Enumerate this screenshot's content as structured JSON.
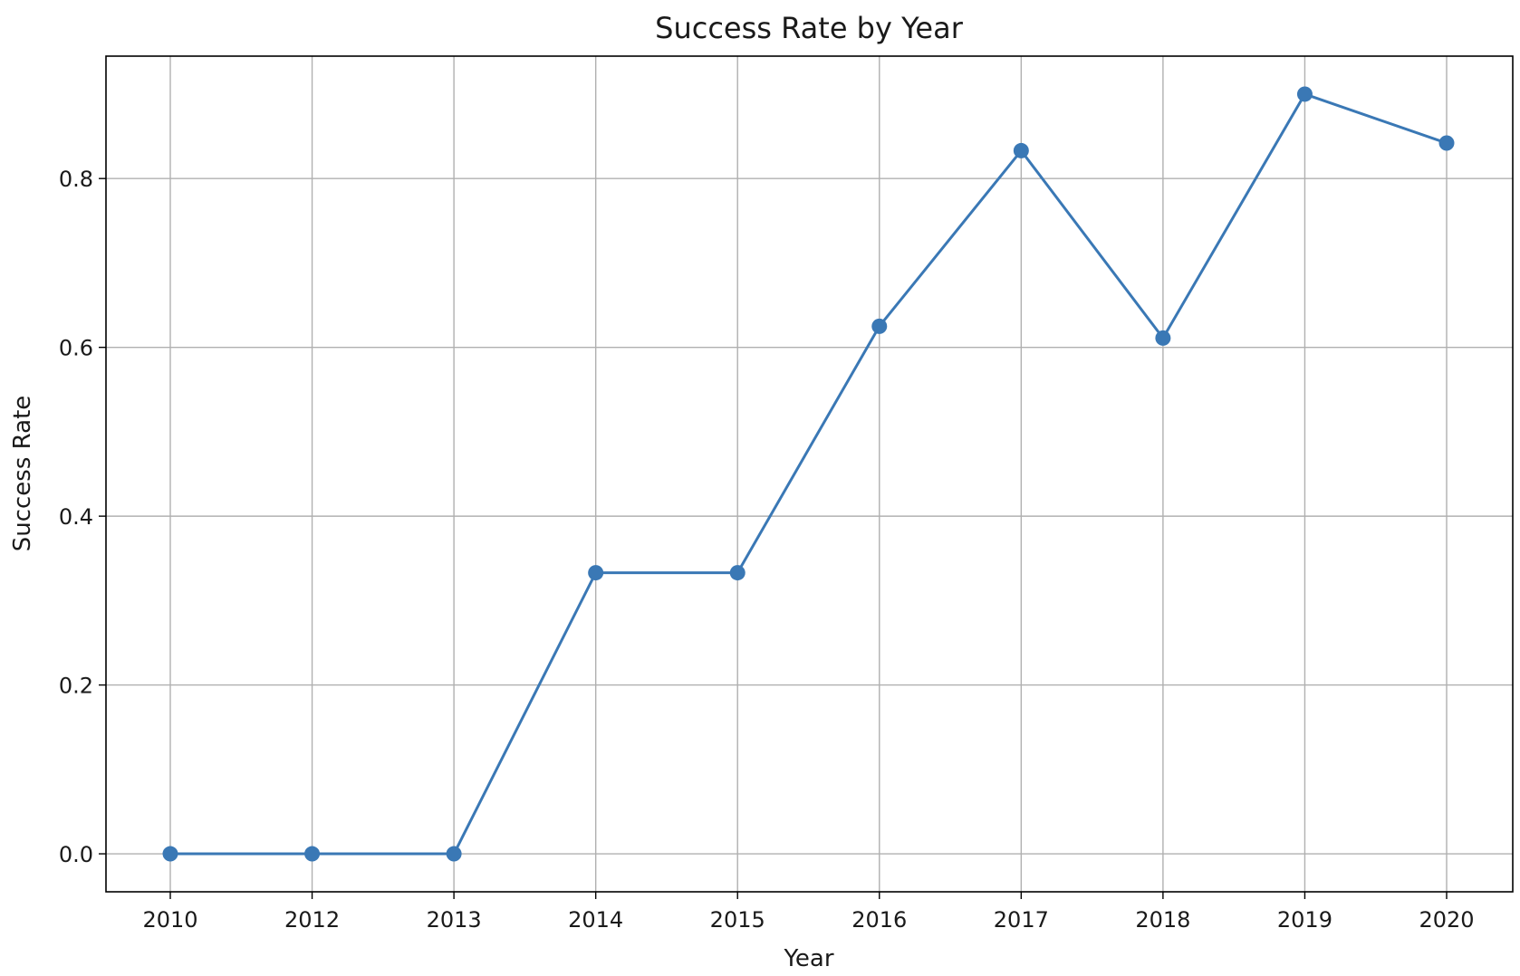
{
  "chart_data": {
    "type": "line",
    "title": "Success Rate by Year",
    "xlabel": "Year",
    "ylabel": "Success Rate",
    "categories": [
      "2010",
      "2012",
      "2013",
      "2014",
      "2015",
      "2016",
      "2017",
      "2018",
      "2019",
      "2020"
    ],
    "series": [
      {
        "values": [
          0.0,
          0.0,
          0.0,
          0.333,
          0.333,
          0.625,
          0.833,
          0.611,
          0.9,
          0.842
        ],
        "color": "#3a78b5",
        "marker": "circle"
      }
    ],
    "yticks": [
      "0.0",
      "0.2",
      "0.4",
      "0.6",
      "0.8"
    ],
    "ylim": [
      -0.045,
      0.945
    ],
    "grid": true,
    "legend": false
  }
}
